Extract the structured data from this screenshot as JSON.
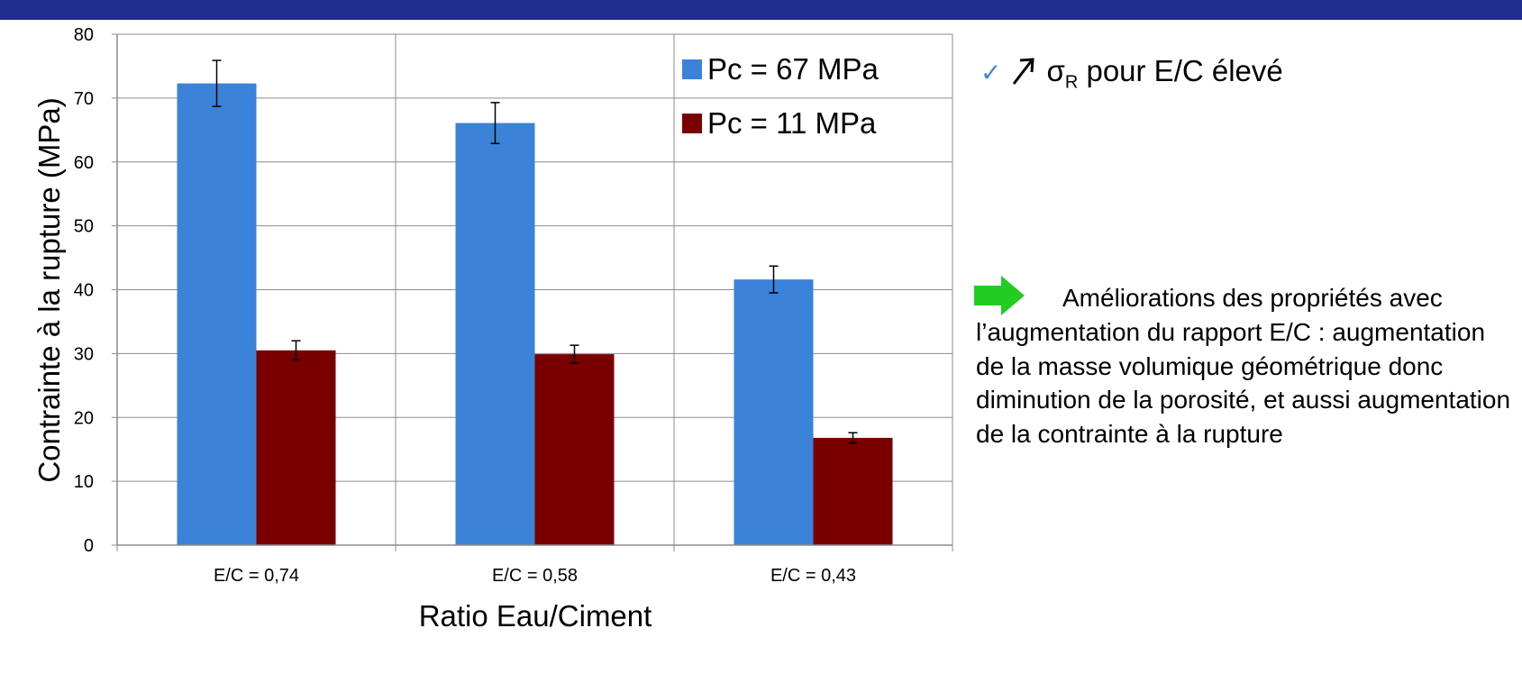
{
  "chart_data": {
    "type": "bar",
    "xlabel": "Ratio Eau/Ciment",
    "ylabel": "Contrainte à la rupture (MPa)",
    "ylim": [
      0,
      80
    ],
    "yticks": [
      "0",
      "10",
      "20",
      "30",
      "40",
      "50",
      "60",
      "70",
      "80"
    ],
    "grid": true,
    "legend_position": "top-right",
    "categories": [
      "E/C = 0,74",
      "E/C = 0,58",
      "E/C = 0,43"
    ],
    "series": [
      {
        "name": "Pc = 67 MPa",
        "color": "#3b82d9",
        "values": [
          72.3,
          66.1,
          41.6
        ],
        "error": [
          3.6,
          3.2,
          2.1
        ]
      },
      {
        "name": "Pc = 11 MPa",
        "color": "#7a0000",
        "values": [
          30.5,
          29.9,
          16.8
        ],
        "error": [
          1.5,
          1.4,
          0.8
        ]
      }
    ]
  },
  "notes": {
    "symbol": "σ",
    "subscript": "R",
    "point1_rest": "pour E/C élevé",
    "point2": "Améliorations des propriétés avec l’augmentation du rapport E/C : augmentation de la masse volumique géométrique donc diminution de la porosité, et aussi augmentation de la contrainte à la rupture"
  },
  "icons": [
    "check-icon",
    "up-right-arrow-icon",
    "green-right-arrow-icon"
  ],
  "colors": {
    "band": "#1f2d8f",
    "check": "#3b8ad8",
    "arrow": "#22cc22"
  }
}
